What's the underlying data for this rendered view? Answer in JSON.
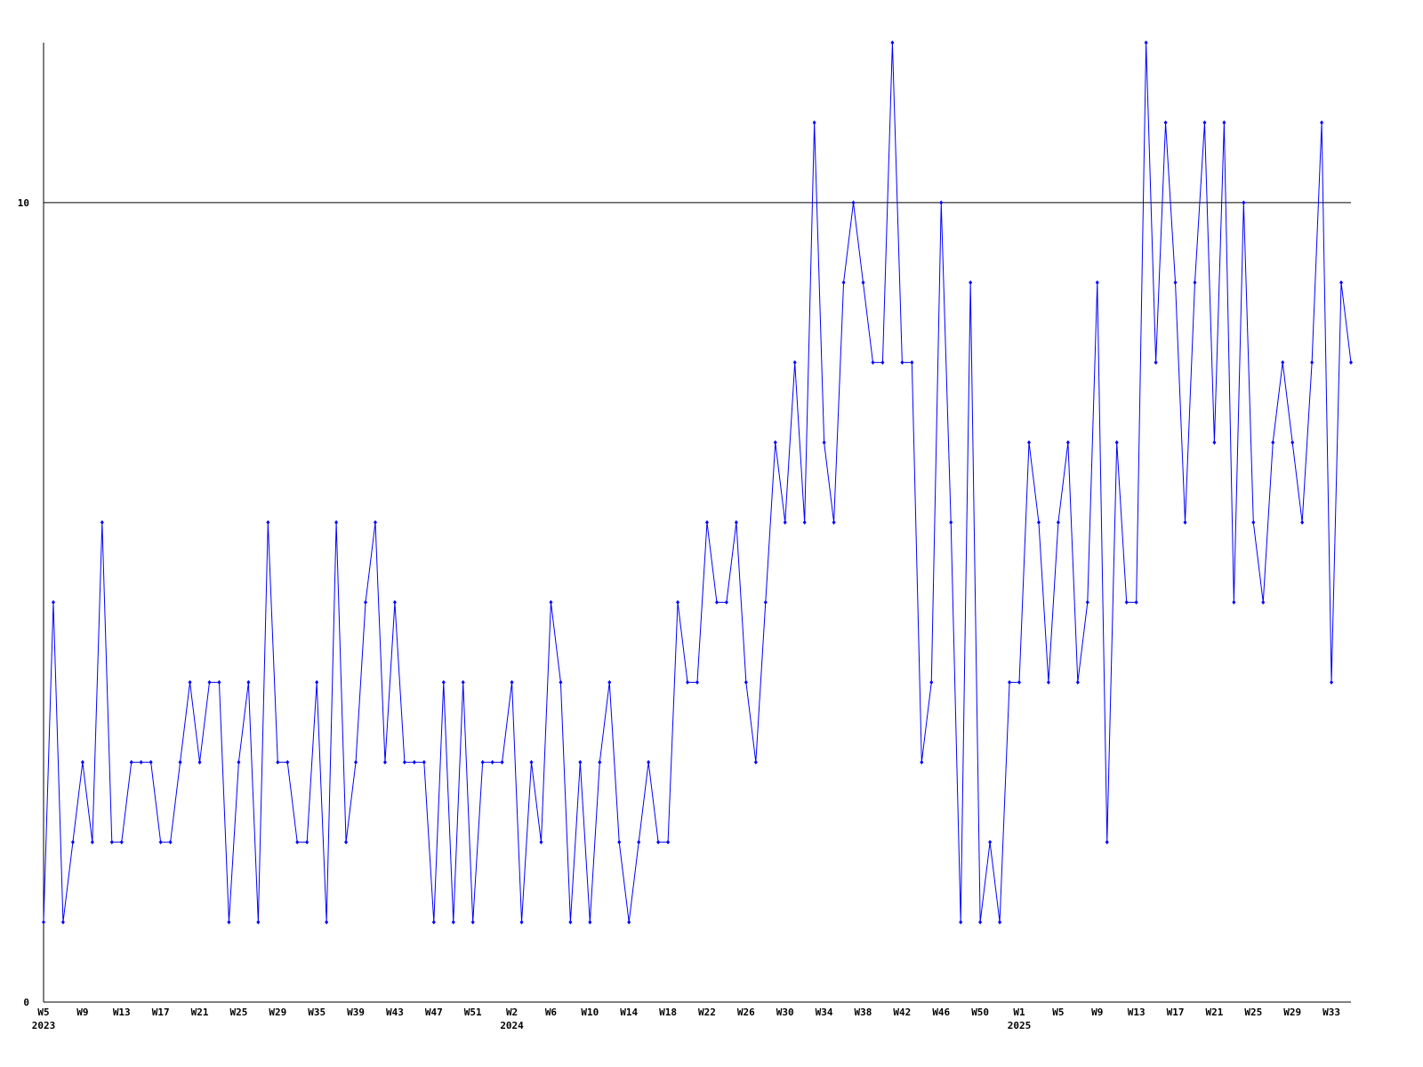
{
  "chart_data": {
    "type": "line",
    "categories": [
      "W5",
      null,
      null,
      null,
      "W9",
      null,
      null,
      null,
      "W13",
      null,
      null,
      null,
      "W17",
      null,
      null,
      null,
      "W21",
      null,
      null,
      null,
      "W25",
      null,
      null,
      null,
      "W29",
      null,
      null,
      null,
      "W35",
      null,
      null,
      null,
      "W39",
      null,
      null,
      null,
      "W43",
      null,
      null,
      null,
      "W47",
      null,
      null,
      null,
      "W51",
      null,
      null,
      null,
      "W2",
      null,
      null,
      null,
      "W6",
      null,
      null,
      null,
      "W10",
      null,
      null,
      null,
      "W14",
      null,
      null,
      null,
      "W18",
      null,
      null,
      null,
      "W22",
      null,
      null,
      null,
      "W26",
      null,
      null,
      null,
      "W30",
      null,
      null,
      null,
      "W34",
      null,
      null,
      null,
      "W38",
      null,
      null,
      null,
      "W42",
      null,
      null,
      null,
      "W46",
      null,
      null,
      null,
      "W50",
      null,
      null,
      null,
      "W1",
      null,
      null,
      null,
      "W5",
      null,
      null,
      null,
      "W9",
      null,
      null,
      null,
      "W13",
      null,
      null,
      null,
      "W17",
      null,
      null,
      null,
      "W21",
      null,
      null,
      null,
      "W25",
      null,
      null,
      null,
      "W29",
      null,
      null,
      null,
      "W33",
      null,
      null
    ],
    "years": [
      "2023",
      "2024",
      "2025"
    ],
    "series": [
      {
        "color": "#0000ff",
        "values": [
          1,
          5,
          1,
          2,
          3,
          2,
          6,
          2,
          2,
          3,
          3,
          3,
          2,
          2,
          3,
          4,
          3,
          4,
          4,
          1,
          3,
          4,
          1,
          6,
          3,
          3,
          2,
          2,
          4,
          1,
          6,
          2,
          3,
          5,
          6,
          3,
          5,
          3,
          3,
          3,
          1,
          4,
          1,
          4,
          1,
          3,
          3,
          3,
          4,
          1,
          3,
          2,
          5,
          4,
          1,
          3,
          1,
          3,
          4,
          2,
          1,
          2,
          3,
          2,
          2,
          5,
          4,
          4,
          6,
          5,
          5,
          6,
          4,
          3,
          5,
          7,
          6,
          8,
          6,
          11,
          7,
          6,
          9,
          10,
          9,
          8,
          8,
          12,
          8,
          8,
          3,
          4,
          10,
          6,
          1,
          9,
          1,
          2,
          1,
          4,
          4,
          7,
          6,
          4,
          6,
          7,
          4,
          5,
          9,
          2,
          7,
          5,
          5,
          12,
          8,
          11,
          9,
          6,
          9,
          11,
          7,
          11,
          5,
          10,
          6,
          5,
          7,
          8,
          7,
          6,
          8,
          11,
          4,
          9,
          8
        ]
      }
    ],
    "ylim": [
      0,
      12
    ],
    "yticks": [
      0,
      10
    ],
    "grid": true
  }
}
